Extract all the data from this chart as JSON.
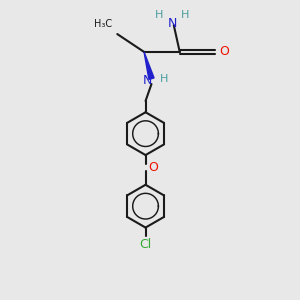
{
  "background_color": "#e8e8e8",
  "bond_color": "#1a1a1a",
  "N_color": "#2020cc",
  "O_color": "#ee1100",
  "Cl_color": "#33aa33",
  "H_color": "#4a9e9e",
  "figsize": [
    3.0,
    3.0
  ],
  "dpi": 100,
  "xlim": [
    0,
    10
  ],
  "ylim": [
    0,
    10
  ]
}
